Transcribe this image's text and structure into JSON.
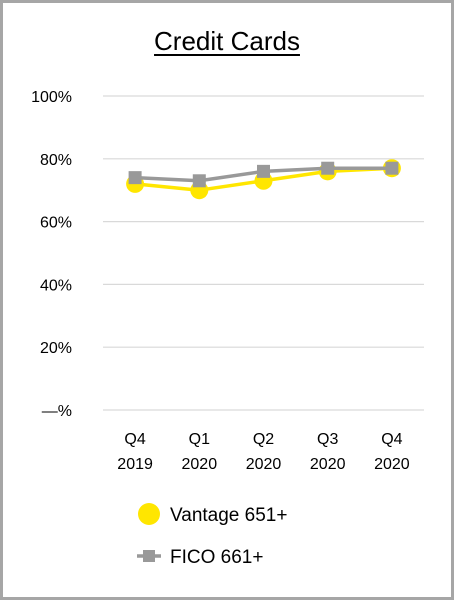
{
  "chart_data": {
    "type": "line",
    "title": "Credit Cards",
    "xlabel": "",
    "ylabel": "",
    "categories": [
      [
        "Q4",
        "2019"
      ],
      [
        "Q1",
        "2020"
      ],
      [
        "Q2",
        "2020"
      ],
      [
        "Q3",
        "2020"
      ],
      [
        "Q4",
        "2020"
      ]
    ],
    "y_ticks": [
      0,
      20,
      40,
      60,
      80,
      100
    ],
    "y_tick_labels": [
      "—%",
      "20%",
      "40%",
      "60%",
      "80%",
      "100%"
    ],
    "ylim": [
      0,
      100
    ],
    "grid": "horizontal",
    "legend_position": "bottom",
    "series": [
      {
        "name": "Vantage 651+",
        "values": [
          72,
          70,
          73,
          76,
          77
        ],
        "color": "#ffe600",
        "marker": "circle"
      },
      {
        "name": "FICO 661+",
        "values": [
          74,
          73,
          76,
          77,
          77
        ],
        "color": "#999999",
        "marker": "square"
      }
    ]
  }
}
